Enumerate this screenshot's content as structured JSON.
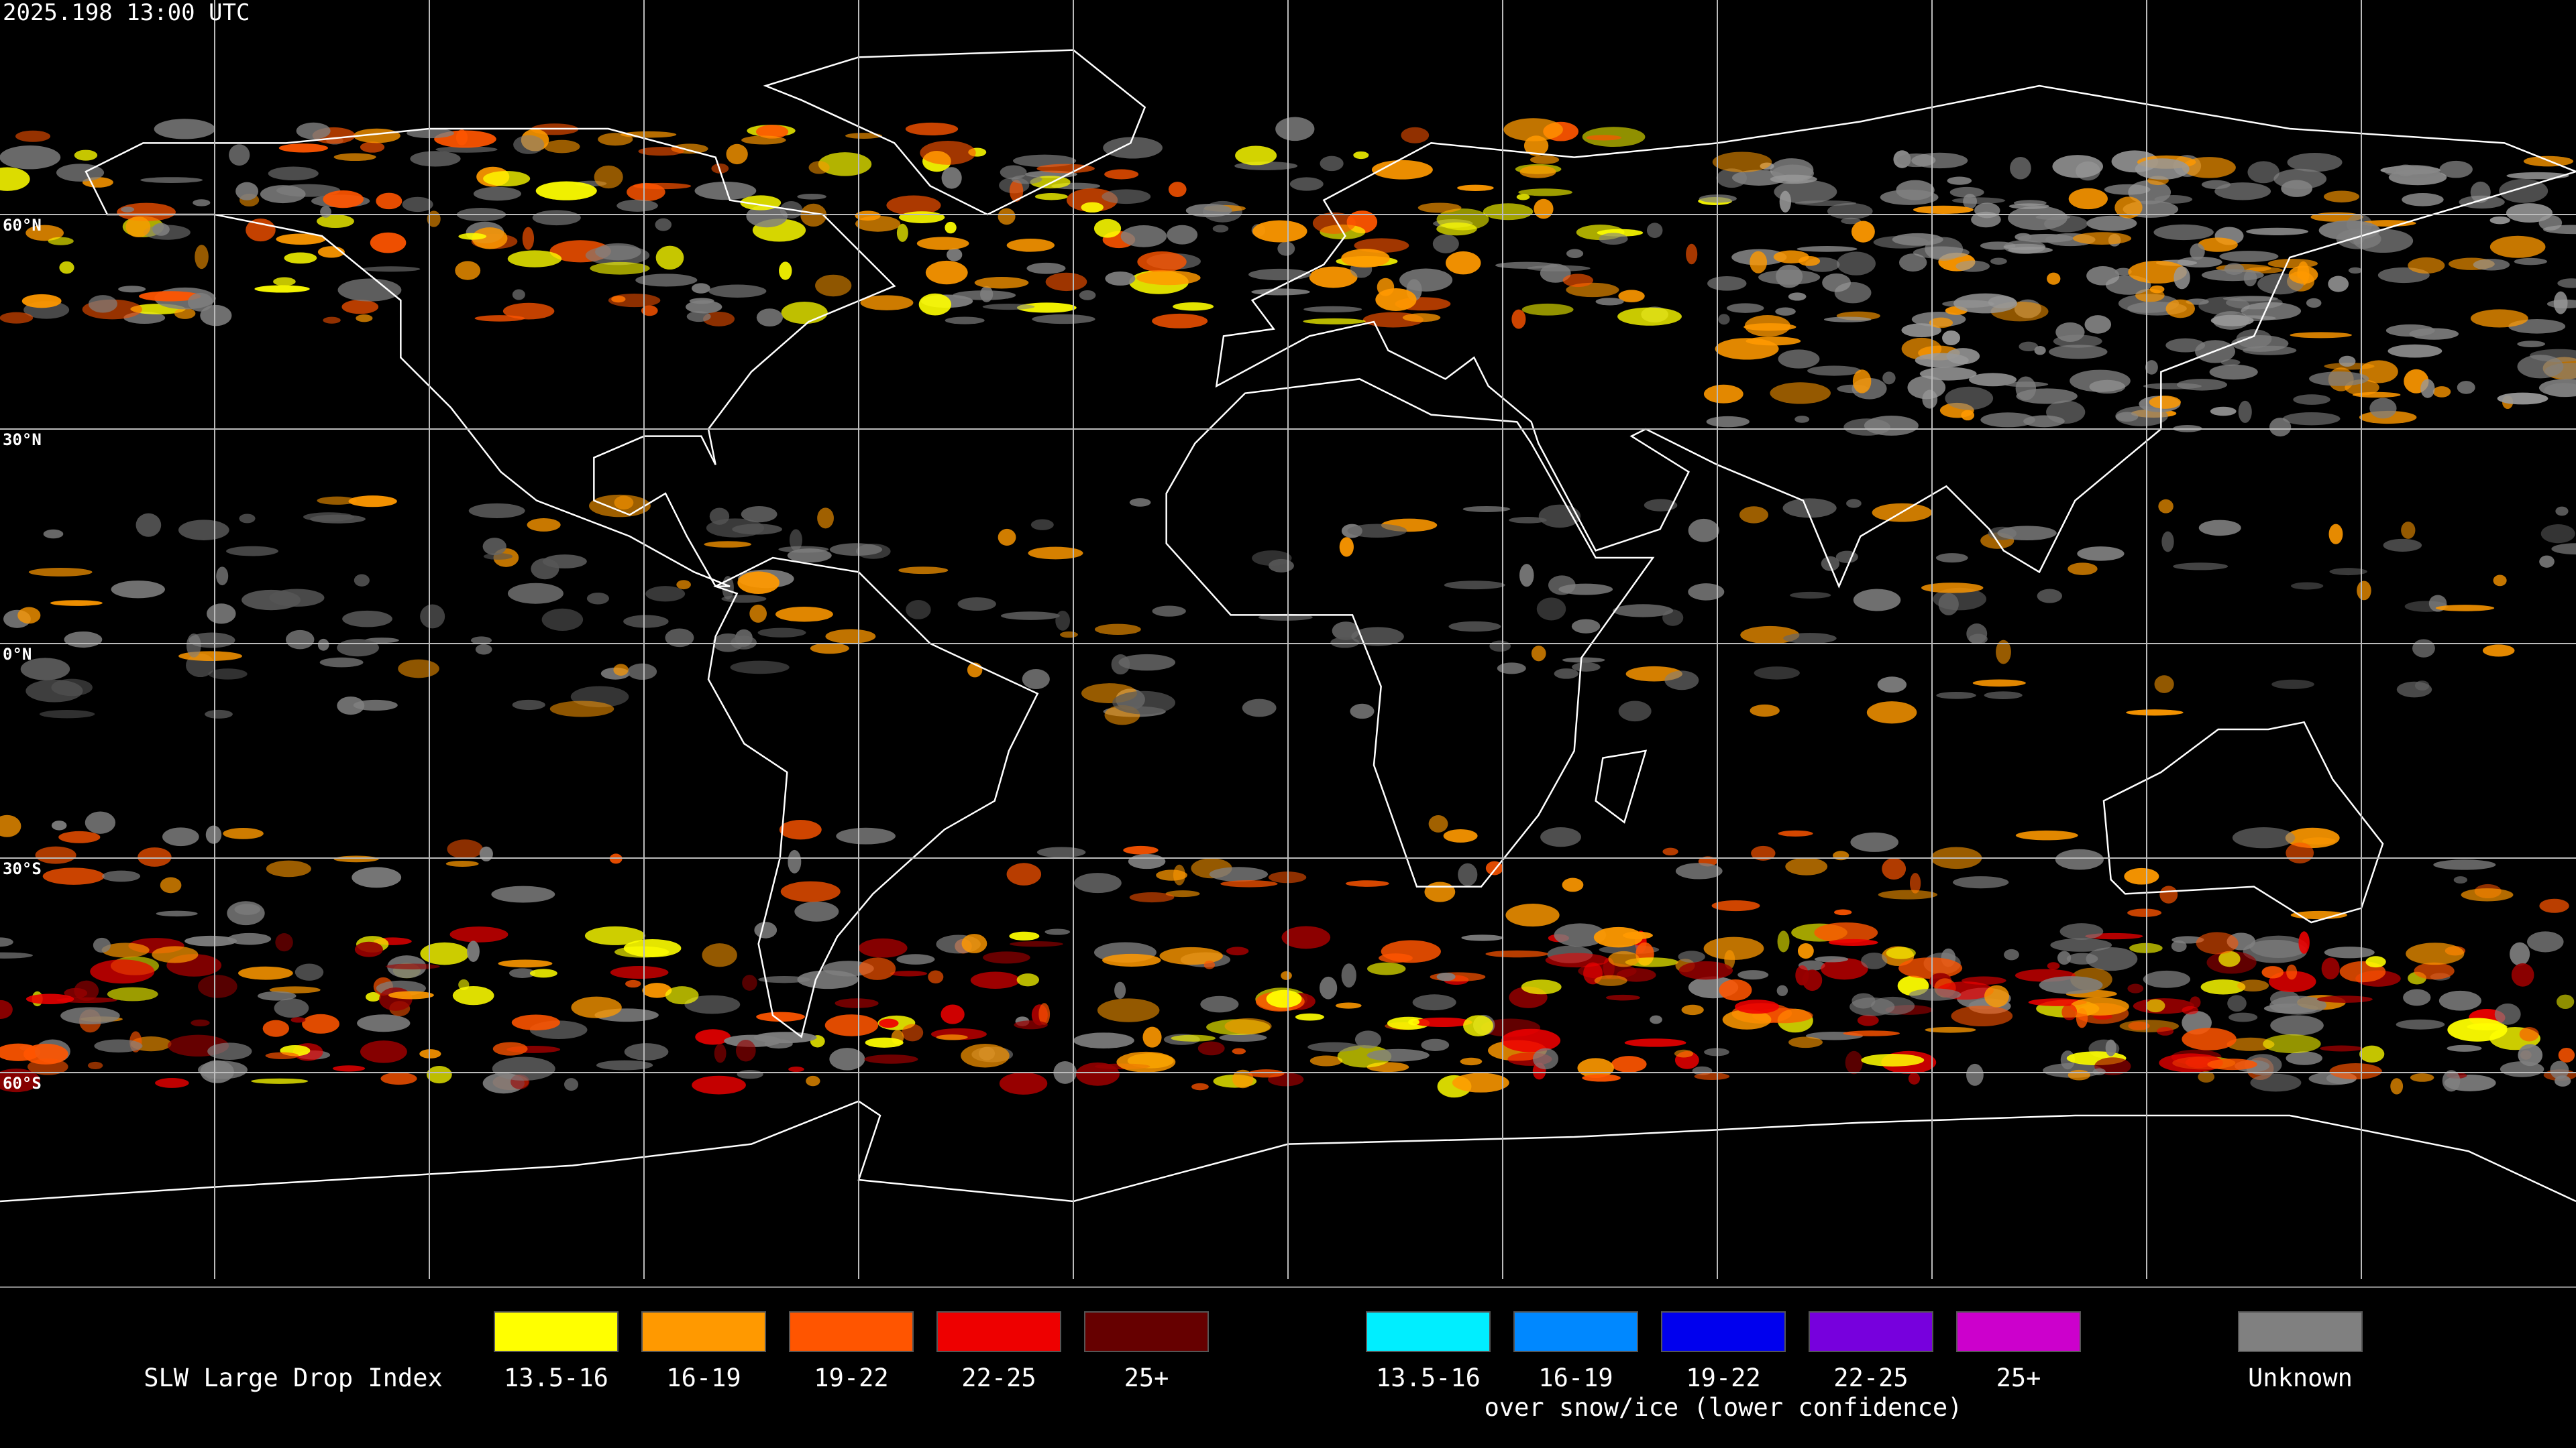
{
  "header": {
    "timestamp": "2025.198 13:00 UTC"
  },
  "map": {
    "lat_labels": [
      "60°N",
      "30°N",
      "0°N",
      "30°S",
      "60°S"
    ]
  },
  "legend": {
    "title": "SLW Large Drop Index",
    "groups": [
      {
        "items": [
          {
            "label": "13.5-16",
            "color": "#ffff00"
          },
          {
            "label": "16-19",
            "color": "#ff9900"
          },
          {
            "label": "19-22",
            "color": "#ff5500"
          },
          {
            "label": "22-25",
            "color": "#ee0000"
          },
          {
            "label": "25+",
            "color": "#660000"
          }
        ]
      },
      {
        "caption": "over snow/ice (lower confidence)",
        "items": [
          {
            "label": "13.5-16",
            "color": "#00eeff"
          },
          {
            "label": "16-19",
            "color": "#0088ff"
          },
          {
            "label": "19-22",
            "color": "#0000ee"
          },
          {
            "label": "22-25",
            "color": "#7700dd"
          },
          {
            "label": "25+",
            "color": "#cc00cc"
          }
        ]
      },
      {
        "items": [
          {
            "label": "Unknown",
            "color": "#808080"
          }
        ]
      }
    ]
  }
}
